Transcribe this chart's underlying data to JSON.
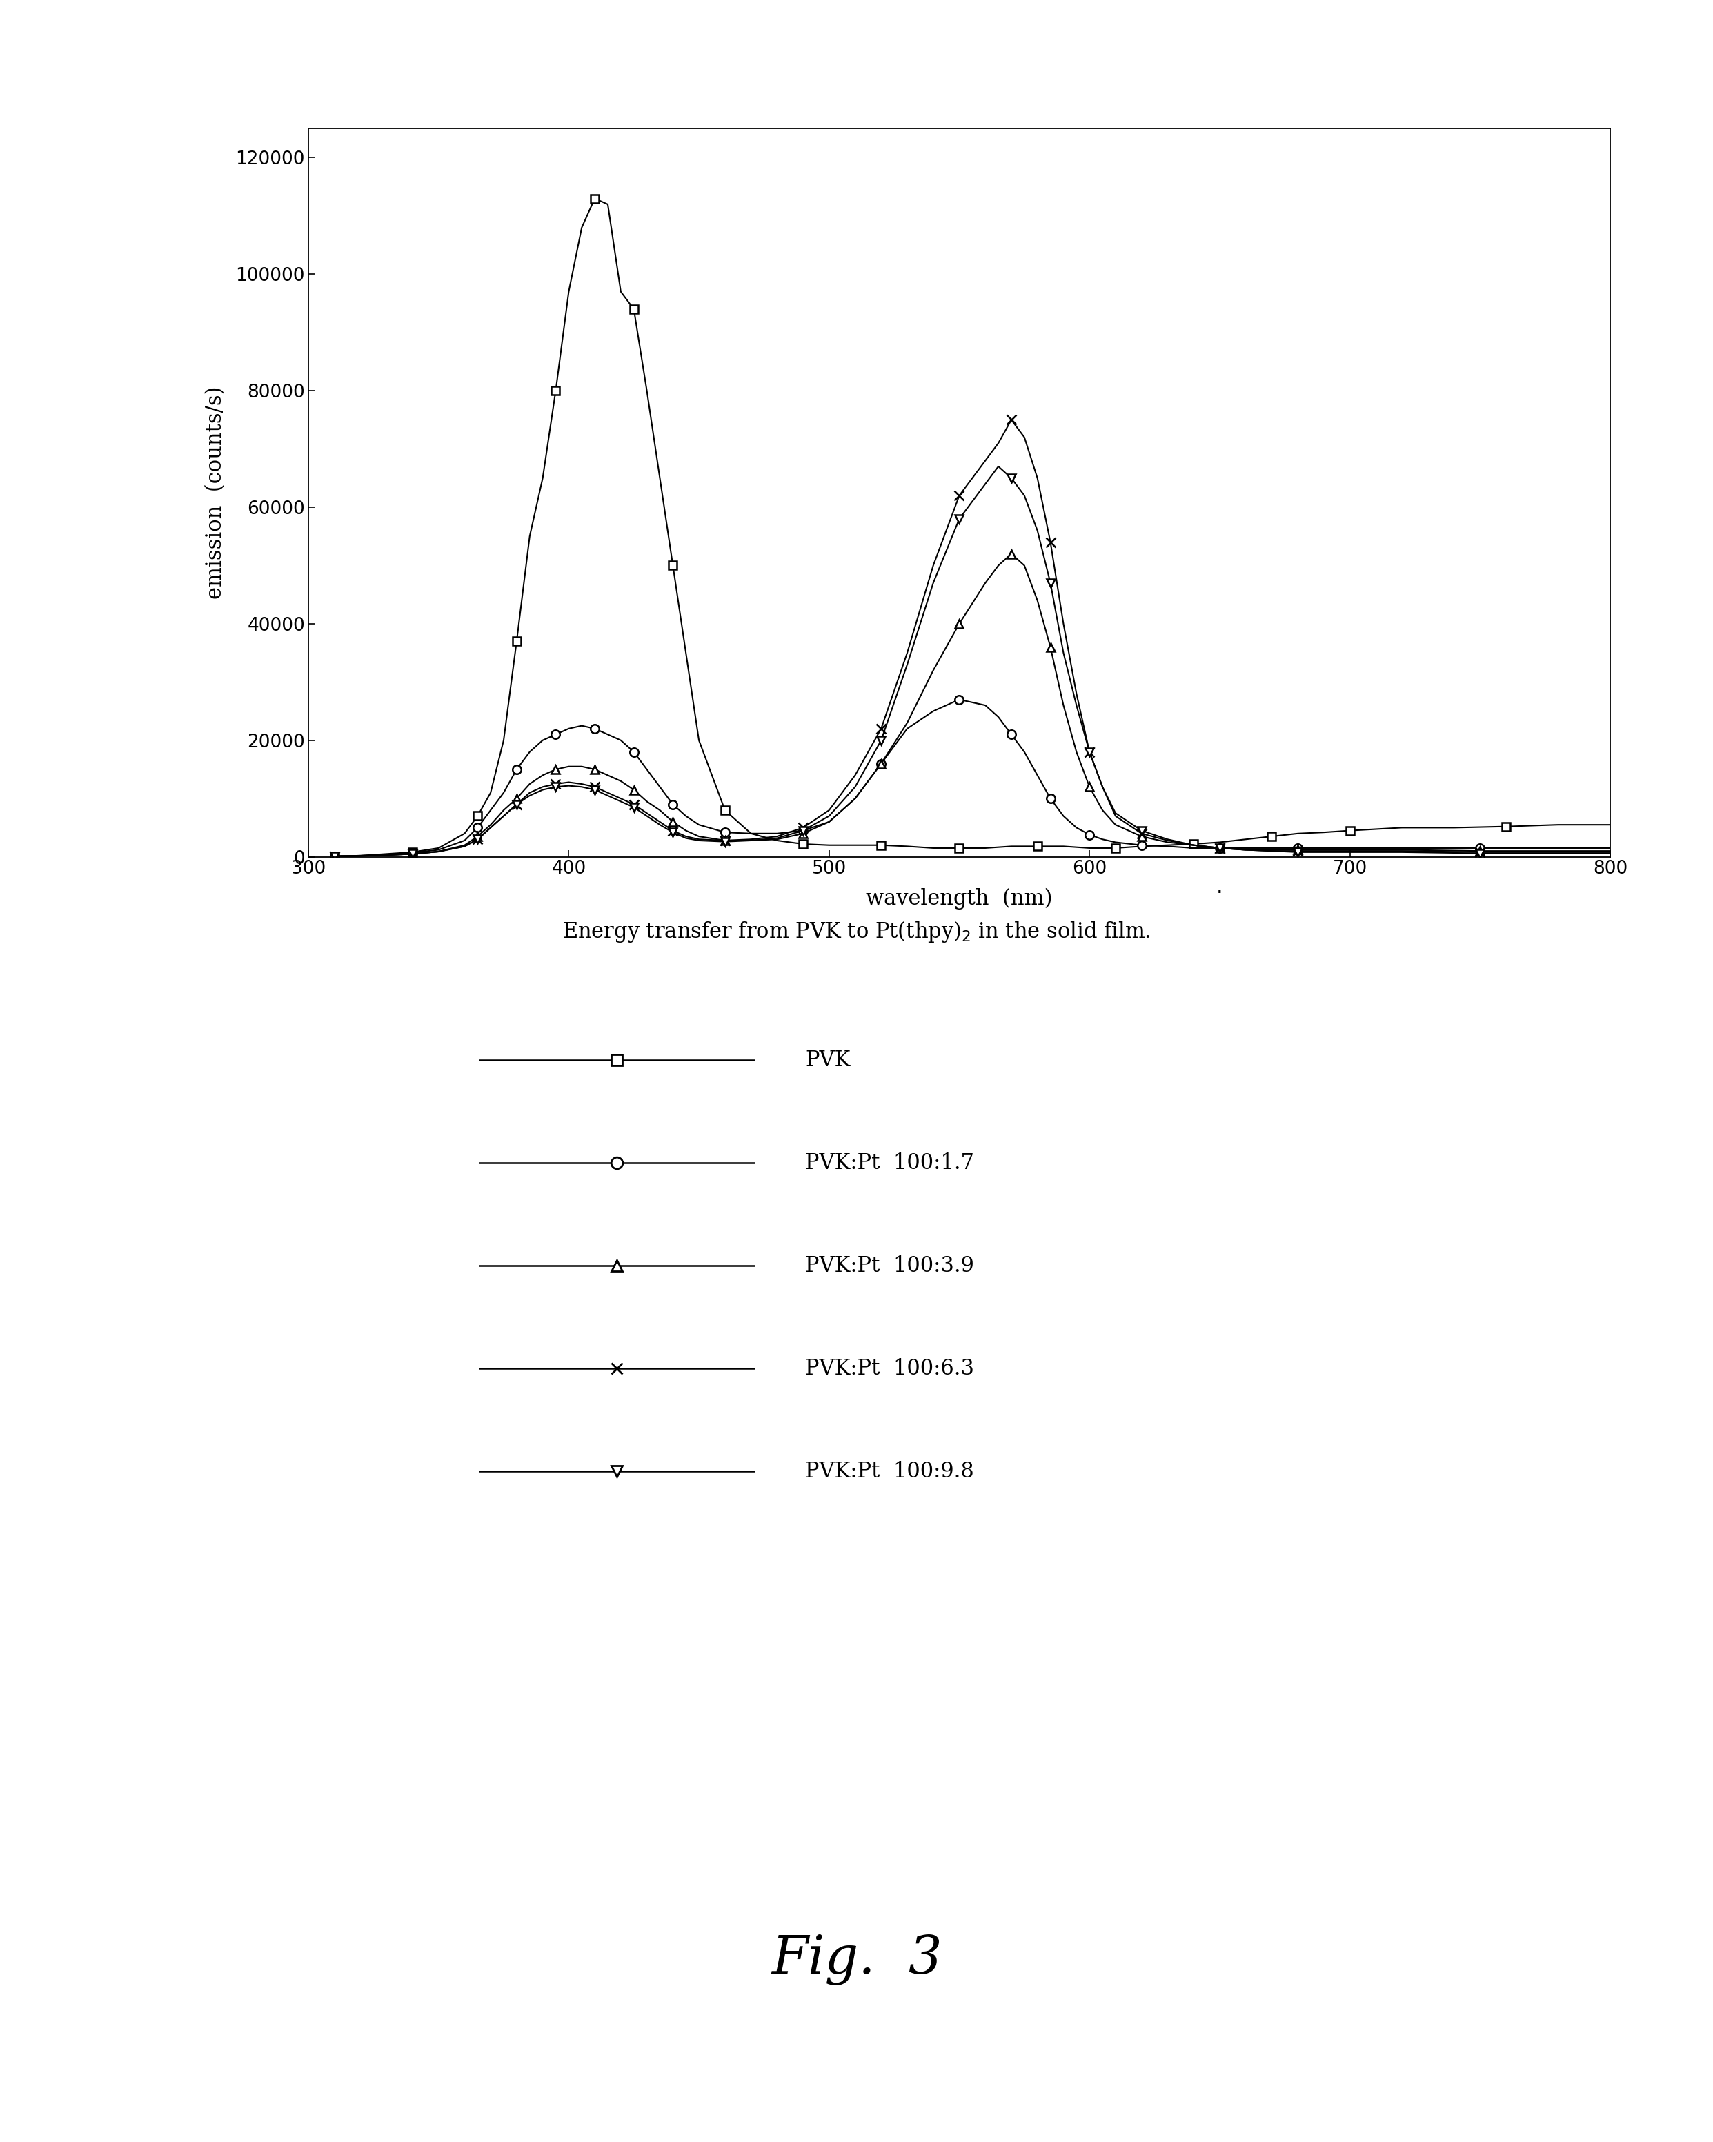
{
  "xlabel": "wavelength  (nm)",
  "ylabel": "emission  (counts/s)",
  "fig_label": "Fig.  3",
  "xlim": [
    300,
    800
  ],
  "ylim": [
    0,
    125000
  ],
  "yticks": [
    0,
    20000,
    40000,
    60000,
    80000,
    100000,
    120000
  ],
  "xticks": [
    300,
    400,
    500,
    600,
    700,
    800
  ],
  "background_color": "#ffffff",
  "caption": "Energy transfer from PVK to Pt(thpy)",
  "caption_sub": "2",
  "caption_end": " in the solid film.",
  "series": [
    {
      "label": "PVK",
      "marker": "s",
      "color": "#000000",
      "x": [
        310,
        320,
        330,
        340,
        350,
        360,
        365,
        370,
        375,
        380,
        385,
        390,
        395,
        400,
        405,
        410,
        415,
        420,
        425,
        430,
        435,
        440,
        445,
        450,
        460,
        470,
        480,
        490,
        500,
        510,
        520,
        530,
        540,
        550,
        560,
        570,
        580,
        590,
        600,
        610,
        620,
        630,
        640,
        650,
        660,
        670,
        680,
        690,
        700,
        720,
        740,
        760,
        780,
        800
      ],
      "y": [
        100,
        200,
        500,
        800,
        1500,
        4000,
        7000,
        11000,
        20000,
        37000,
        55000,
        65000,
        80000,
        97000,
        108000,
        113000,
        112000,
        97000,
        94000,
        80000,
        65000,
        50000,
        35000,
        20000,
        8000,
        4000,
        2800,
        2200,
        2000,
        2000,
        2000,
        1800,
        1500,
        1500,
        1500,
        1800,
        1800,
        1800,
        1500,
        1500,
        1800,
        2000,
        2200,
        2500,
        3000,
        3500,
        4000,
        4200,
        4500,
        5000,
        5000,
        5200,
        5500,
        5500
      ]
    },
    {
      "label": "PVK:Pt  100:1.7",
      "marker": "o",
      "color": "#000000",
      "x": [
        310,
        320,
        330,
        340,
        350,
        360,
        365,
        370,
        375,
        380,
        385,
        390,
        395,
        400,
        405,
        410,
        415,
        420,
        425,
        430,
        435,
        440,
        445,
        450,
        460,
        470,
        480,
        490,
        500,
        510,
        520,
        530,
        540,
        550,
        560,
        565,
        570,
        575,
        580,
        585,
        590,
        595,
        600,
        605,
        610,
        620,
        630,
        640,
        650,
        660,
        670,
        680,
        700,
        720,
        750,
        780,
        800
      ],
      "y": [
        100,
        200,
        400,
        700,
        1200,
        2800,
        5000,
        8000,
        11000,
        15000,
        18000,
        20000,
        21000,
        22000,
        22500,
        22000,
        21000,
        20000,
        18000,
        15000,
        12000,
        9000,
        7000,
        5500,
        4200,
        4000,
        4000,
        4500,
        6000,
        10000,
        16000,
        22000,
        25000,
        27000,
        26000,
        24000,
        21000,
        18000,
        14000,
        10000,
        7000,
        5000,
        3800,
        3000,
        2500,
        2000,
        1800,
        1500,
        1500,
        1500,
        1500,
        1500,
        1500,
        1500,
        1500,
        1500,
        1500
      ]
    },
    {
      "label": "PVK:Pt  100:3.9",
      "marker": "^",
      "color": "#000000",
      "x": [
        310,
        320,
        330,
        340,
        350,
        360,
        365,
        370,
        375,
        380,
        385,
        390,
        395,
        400,
        405,
        410,
        415,
        420,
        425,
        430,
        435,
        440,
        445,
        450,
        460,
        470,
        480,
        490,
        500,
        510,
        520,
        530,
        540,
        550,
        560,
        565,
        570,
        575,
        580,
        585,
        590,
        595,
        600,
        605,
        610,
        620,
        630,
        640,
        650,
        660,
        670,
        680,
        700,
        720,
        750,
        780,
        800
      ],
      "y": [
        100,
        150,
        300,
        500,
        900,
        2000,
        3500,
        5500,
        8000,
        10000,
        12500,
        14000,
        15000,
        15500,
        15500,
        15000,
        14000,
        13000,
        11500,
        9500,
        8000,
        6000,
        4500,
        3500,
        2800,
        2800,
        3000,
        4000,
        6000,
        10000,
        16000,
        23000,
        32000,
        40000,
        47000,
        50000,
        52000,
        50000,
        44000,
        36000,
        26000,
        18000,
        12000,
        8000,
        5500,
        3500,
        2500,
        2000,
        1500,
        1200,
        1200,
        1200,
        1200,
        1200,
        1000,
        1000,
        1000
      ]
    },
    {
      "label": "PVK:Pt  100:6.3",
      "marker": "x",
      "color": "#000000",
      "x": [
        310,
        320,
        330,
        340,
        350,
        360,
        365,
        370,
        375,
        380,
        385,
        390,
        395,
        400,
        405,
        410,
        415,
        420,
        425,
        430,
        435,
        440,
        445,
        450,
        460,
        470,
        480,
        490,
        500,
        510,
        520,
        530,
        540,
        550,
        560,
        565,
        570,
        575,
        580,
        585,
        590,
        595,
        600,
        605,
        610,
        620,
        630,
        640,
        650,
        660,
        670,
        680,
        700,
        720,
        750,
        780,
        800
      ],
      "y": [
        100,
        150,
        300,
        500,
        900,
        1800,
        3000,
        5000,
        7000,
        9000,
        11000,
        12000,
        12500,
        12800,
        12500,
        12000,
        11000,
        10000,
        9000,
        7500,
        6000,
        4500,
        3500,
        3000,
        2800,
        3000,
        3500,
        5000,
        8000,
        14000,
        22000,
        35000,
        50000,
        62000,
        68000,
        71000,
        75000,
        72000,
        65000,
        54000,
        40000,
        28000,
        18000,
        12000,
        7000,
        4000,
        2800,
        2000,
        1500,
        1200,
        1000,
        1000,
        1000,
        1000,
        800,
        800,
        800
      ]
    },
    {
      "label": "PVK:Pt  100:9.8",
      "marker": "v",
      "color": "#000000",
      "x": [
        310,
        320,
        330,
        340,
        350,
        360,
        365,
        370,
        375,
        380,
        385,
        390,
        395,
        400,
        405,
        410,
        415,
        420,
        425,
        430,
        435,
        440,
        445,
        450,
        460,
        470,
        480,
        490,
        500,
        510,
        520,
        530,
        540,
        550,
        560,
        565,
        570,
        575,
        580,
        585,
        590,
        595,
        600,
        605,
        610,
        620,
        630,
        640,
        650,
        660,
        670,
        680,
        700,
        720,
        750,
        780,
        800
      ],
      "y": [
        100,
        150,
        300,
        500,
        900,
        1800,
        3000,
        5000,
        7000,
        9000,
        10500,
        11500,
        12000,
        12200,
        12000,
        11500,
        10500,
        9500,
        8500,
        7000,
        5500,
        4200,
        3200,
        2800,
        2600,
        2800,
        3200,
        4500,
        7000,
        12000,
        20000,
        33000,
        47000,
        58000,
        64000,
        67000,
        65000,
        62000,
        56000,
        47000,
        35000,
        26000,
        18000,
        12000,
        7500,
        4500,
        3000,
        2000,
        1500,
        1200,
        1000,
        800,
        800,
        800,
        600,
        600,
        600
      ]
    }
  ]
}
